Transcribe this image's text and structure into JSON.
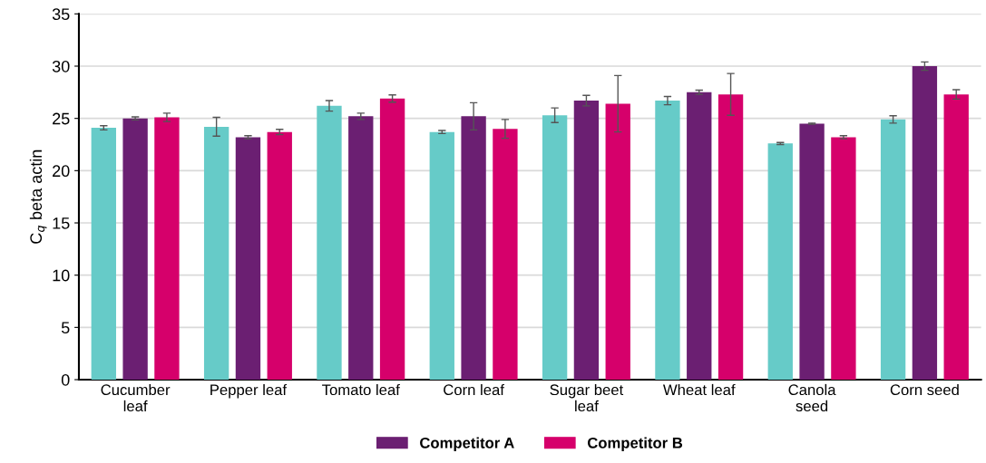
{
  "chart_data": {
    "type": "bar",
    "ylabel": "C$_{q}$ beta actin",
    "categories": [
      "Cucumber\nleaf",
      "Pepper leaf",
      "Tomato leaf",
      "Corn leaf",
      "Sugar beet\nleaf",
      "Wheat leaf",
      "Canola\nseed",
      "Corn seed"
    ],
    "series": [
      {
        "color": "#66cbc8",
        "values": [
          24.1,
          24.2,
          26.2,
          23.7,
          25.3,
          26.7,
          22.6,
          24.9
        ],
        "errors": [
          0.2,
          0.9,
          0.5,
          0.15,
          0.7,
          0.4,
          0.1,
          0.35
        ]
      },
      {
        "name": "Competitor A",
        "color": "#6b1f72",
        "values": [
          25.0,
          23.2,
          25.2,
          25.2,
          26.7,
          27.5,
          24.5,
          30.0
        ],
        "errors": [
          0.15,
          0.15,
          0.3,
          1.3,
          0.5,
          0.2,
          0.05,
          0.4
        ]
      },
      {
        "name": "Competitor B",
        "color": "#d6006b",
        "values": [
          25.1,
          23.7,
          26.9,
          24.0,
          26.4,
          27.3,
          23.2,
          27.3
        ],
        "errors": [
          0.4,
          0.25,
          0.35,
          0.9,
          2.7,
          2.0,
          0.15,
          0.45
        ]
      }
    ],
    "ylim": [
      0,
      35
    ],
    "yticks": [
      0,
      5,
      10,
      15,
      20,
      25,
      30,
      35
    ],
    "grid": "y",
    "legend": "bottom"
  }
}
